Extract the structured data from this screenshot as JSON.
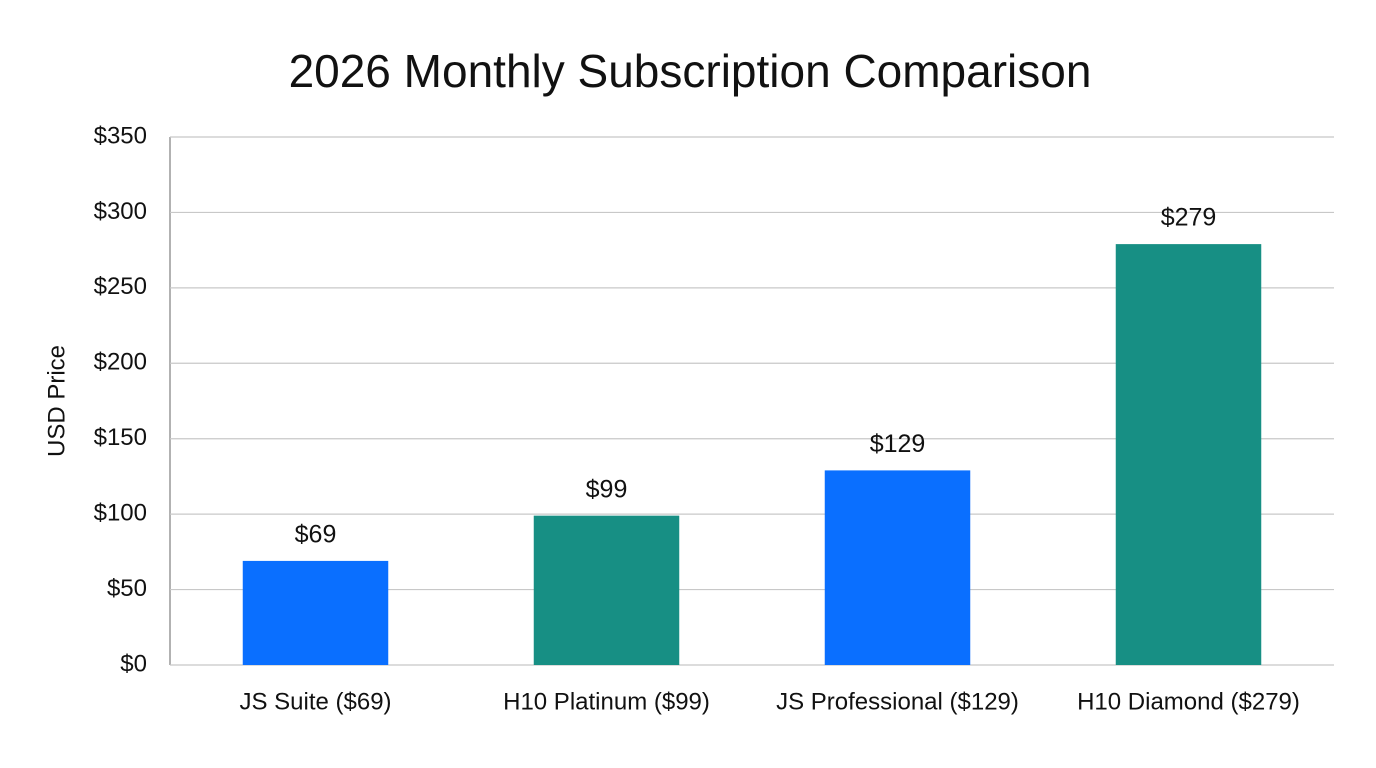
{
  "chart_data": {
    "type": "bar",
    "title": "2026 Monthly Subscription Comparison",
    "y_label": "USD Price",
    "categories": [
      "JS Suite ($69)",
      "H10 Platinum ($99)",
      "JS Professional ($129)",
      "H10 Diamond ($279)"
    ],
    "values": [
      69,
      99,
      129,
      279
    ],
    "value_labels": [
      "$69",
      "$99",
      "$129",
      "$279"
    ],
    "colors": [
      "#0a6fff",
      "#178f84",
      "#0a6fff",
      "#178f84"
    ],
    "ylim": [
      0,
      350
    ],
    "yticks": [
      {
        "value": 0,
        "label": "$0"
      },
      {
        "value": 50,
        "label": "$50"
      },
      {
        "value": 100,
        "label": "$100"
      },
      {
        "value": 150,
        "label": "$150"
      },
      {
        "value": 200,
        "label": "$200"
      },
      {
        "value": 250,
        "label": "$250"
      },
      {
        "value": 300,
        "label": "$300"
      },
      {
        "value": 350,
        "label": "$350"
      }
    ],
    "grid": true
  }
}
